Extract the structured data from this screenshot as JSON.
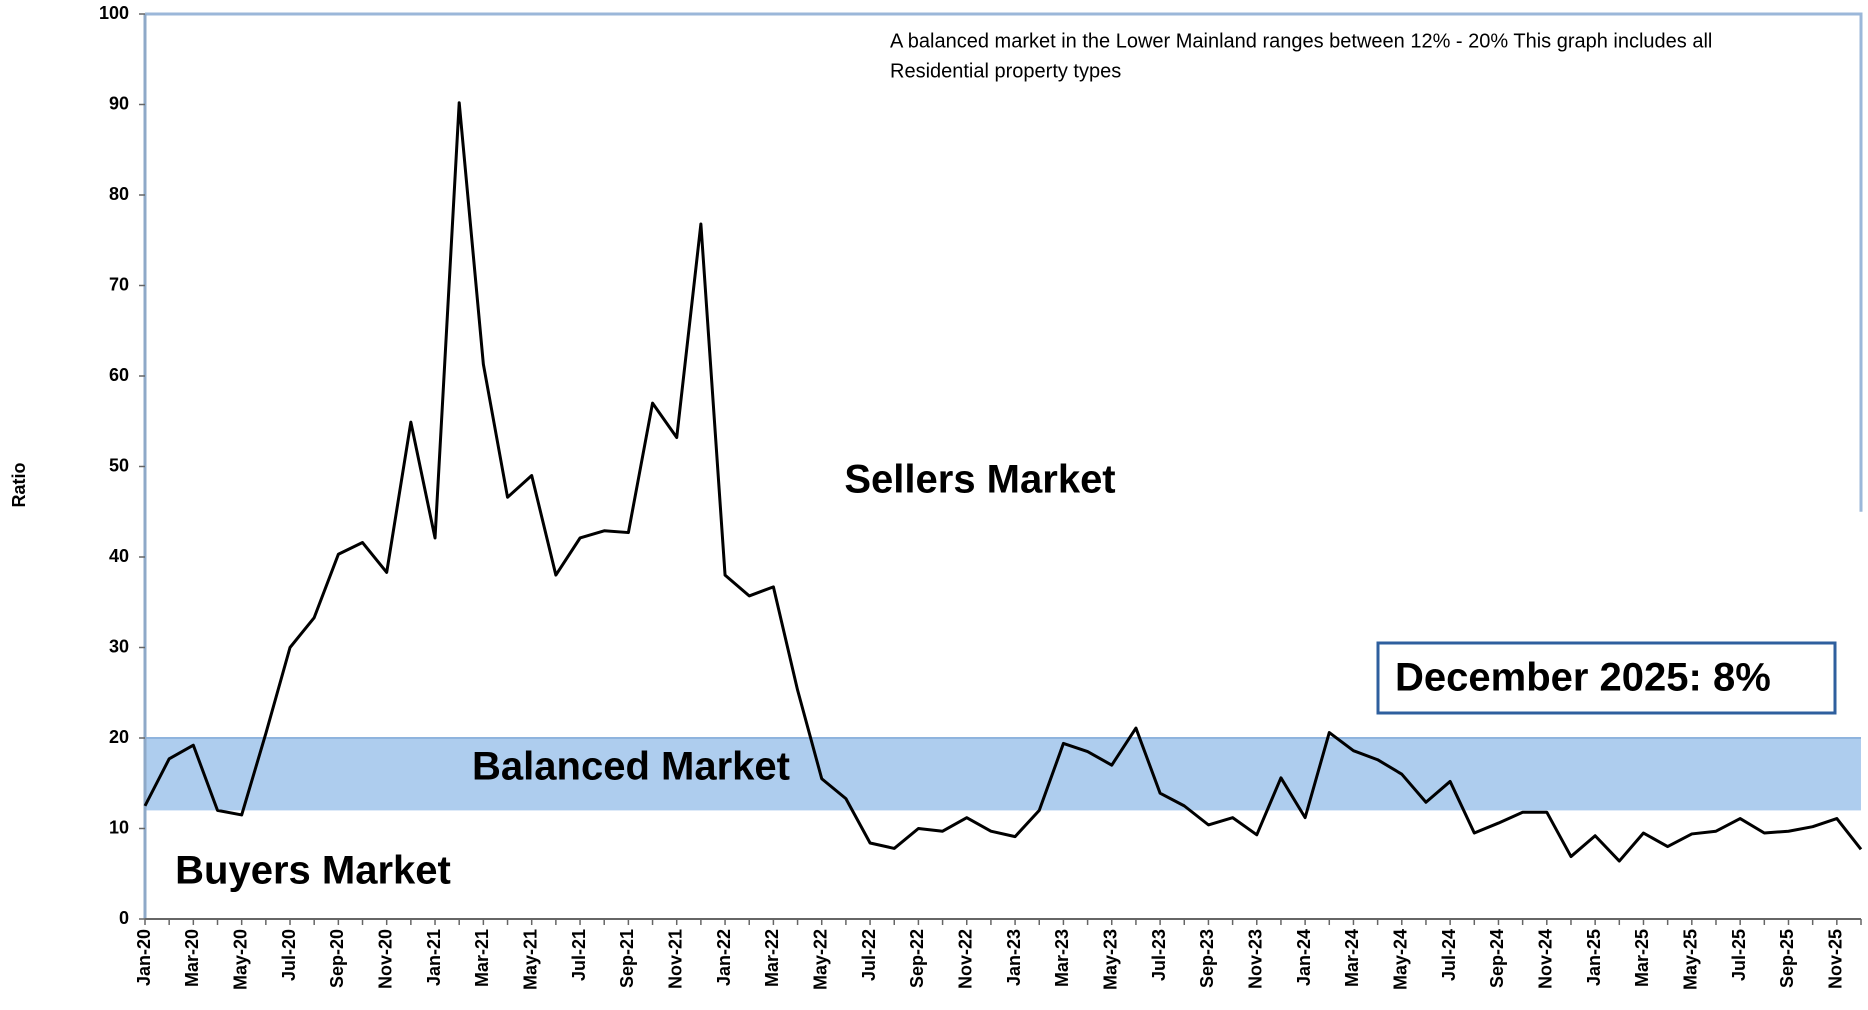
{
  "chart_data": {
    "type": "line",
    "y_label": "Ratio",
    "categories": [
      "Jan-20",
      null,
      "Mar-20",
      null,
      "May-20",
      null,
      "Jul-20",
      null,
      "Sep-20",
      null,
      "Nov-20",
      null,
      "Jan-21",
      null,
      "Mar-21",
      null,
      "May-21",
      null,
      "Jul-21",
      null,
      "Sep-21",
      null,
      "Nov-21",
      null,
      "Jan-22",
      null,
      "Mar-22",
      null,
      "May-22",
      null,
      "Jul-22",
      null,
      "Sep-22",
      null,
      "Nov-22",
      null,
      "Jan-23",
      null,
      "Mar-23",
      null,
      "May-23",
      null,
      "Jul-23",
      null,
      "Sep-23",
      null,
      "Nov-23",
      null,
      "Jan-24",
      null,
      "Mar-24",
      null,
      "May-24",
      null,
      "Jul-24",
      null,
      "Sep-24",
      null,
      "Nov-24",
      null,
      "Jan-25",
      null,
      "Mar-25",
      null,
      "May-25",
      null,
      "Jul-25",
      null,
      "Sep-25",
      null,
      "Nov-25",
      null
    ],
    "series": [
      {
        "color": "#000000",
        "values": [
          12.5,
          17.7,
          19.2,
          12,
          11.5,
          20.5,
          30,
          33.3,
          40.3,
          41.6,
          38.3,
          54.9,
          42.1,
          90.2,
          61.3,
          46.6,
          49,
          38,
          42.1,
          42.9,
          42.7,
          57,
          53.2,
          76.8,
          38,
          35.7,
          36.7,
          25.3,
          15.5,
          13.3,
          8.4,
          7.8,
          10,
          9.7,
          11.2,
          9.7,
          9.1,
          12,
          19.4,
          18.5,
          17,
          21.1,
          13.9,
          12.5,
          10.4,
          11.2,
          9.3,
          15.6,
          11.2,
          20.6,
          18.6,
          17.6,
          16,
          12.9,
          15.2,
          9.5,
          10.6,
          11.8,
          11.8,
          6.9,
          9.2,
          6.4,
          9.5,
          8,
          9.4,
          9.7,
          11.1,
          9.5,
          9.7,
          10.2,
          11.1,
          7.7
        ]
      }
    ],
    "ylim": [
      0,
      100
    ],
    "yticks": [
      0,
      10,
      20,
      30,
      40,
      50,
      60,
      70,
      80,
      90,
      100
    ],
    "balanced_band": [
      12,
      20
    ],
    "band_color": "#aecdee",
    "zones": {
      "sellers": "Sellers Market",
      "balanced": "Balanced Market",
      "buyers": "Buyers Market"
    },
    "note": [
      "A balanced market in the Lower Mainland ranges between 12% - 20% This graph includes all",
      "Residential property types"
    ],
    "callout": "December 2025: 8%"
  }
}
